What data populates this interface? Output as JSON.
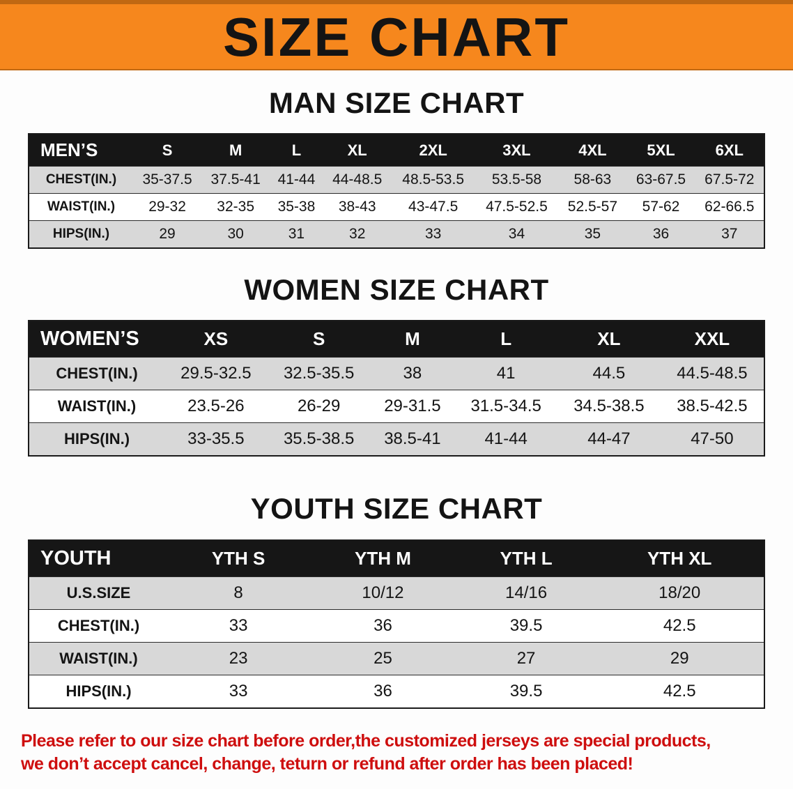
{
  "banner": {
    "title": "SIZE CHART"
  },
  "sections": [
    {
      "heading": "MAN SIZE CHART",
      "table": {
        "header": [
          "MEN’S",
          "S",
          "M",
          "L",
          "XL",
          "2XL",
          "3XL",
          "4XL",
          "5XL",
          "6XL"
        ],
        "rows": [
          [
            "CHEST(IN.)",
            "35-37.5",
            "37.5-41",
            "41-44",
            "44-48.5",
            "48.5-53.5",
            "53.5-58",
            "58-63",
            "63-67.5",
            "67.5-72"
          ],
          [
            "WAIST(IN.)",
            "29-32",
            "32-35",
            "35-38",
            "38-43",
            "43-47.5",
            "47.5-52.5",
            "52.5-57",
            "57-62",
            "62-66.5"
          ],
          [
            "HIPS(IN.)",
            "29",
            "30",
            "31",
            "32",
            "33",
            "34",
            "35",
            "36",
            "37"
          ]
        ]
      }
    },
    {
      "heading": "WOMEN SIZE CHART",
      "table": {
        "header": [
          "WOMEN’S",
          "XS",
          "S",
          "M",
          "L",
          "XL",
          "XXL"
        ],
        "rows": [
          [
            "CHEST(IN.)",
            "29.5-32.5",
            "32.5-35.5",
            "38",
            "41",
            "44.5",
            "44.5-48.5"
          ],
          [
            "WAIST(IN.)",
            "23.5-26",
            "26-29",
            "29-31.5",
            "31.5-34.5",
            "34.5-38.5",
            "38.5-42.5"
          ],
          [
            "HIPS(IN.)",
            "33-35.5",
            "35.5-38.5",
            "38.5-41",
            "41-44",
            "44-47",
            "47-50"
          ]
        ]
      }
    },
    {
      "heading": "YOUTH SIZE CHART",
      "table": {
        "header": [
          "YOUTH",
          "YTH S",
          "YTH M",
          "YTH L",
          "YTH XL"
        ],
        "rows": [
          [
            "U.S.SIZE",
            "8",
            "10/12",
            "14/16",
            "18/20"
          ],
          [
            "CHEST(IN.)",
            "33",
            "36",
            "39.5",
            "42.5"
          ],
          [
            "WAIST(IN.)",
            "23",
            "25",
            "27",
            "29"
          ],
          [
            "HIPS(IN.)",
            "33",
            "36",
            "39.5",
            "42.5"
          ]
        ]
      }
    }
  ],
  "footer": {
    "line1": "Please refer to our size chart before order,the customized jerseys are special products,",
    "line2": "we don’t accept cancel, change, teturn or refund after order has been placed!"
  },
  "colors": {
    "banner_bg": "#f6871d",
    "banner_edge": "#c06812",
    "header_bg": "#161616",
    "stripe": "#d8d8d8",
    "footer_text": "#ce0e0e"
  }
}
